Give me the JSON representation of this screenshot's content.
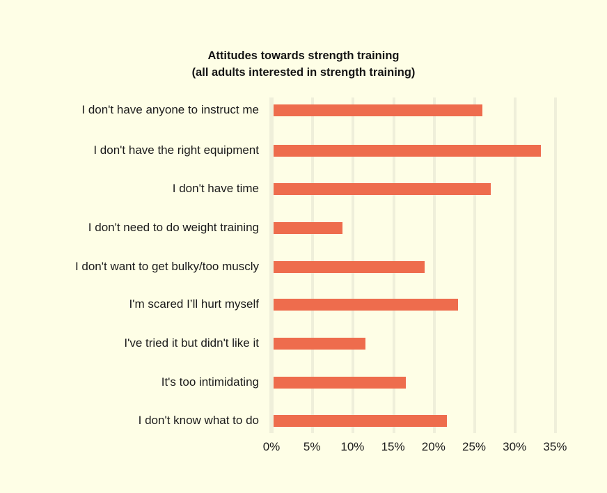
{
  "chart_data": {
    "type": "bar",
    "orientation": "horizontal",
    "title": "Attitudes towards strength training",
    "subtitle": "(all adults interested in strength training)",
    "xlabel": "",
    "ylabel": "",
    "xlim": [
      0,
      35
    ],
    "x_ticks": [
      "0%",
      "5%",
      "10%",
      "15%",
      "20%",
      "25%",
      "30%",
      "35%"
    ],
    "grid": "vertical",
    "legend": null,
    "bar_color": "#EE6C4D",
    "background": "#FEFEE6",
    "categories": [
      "I don't have anyone to instruct me",
      "I don't have the right equipment",
      "I don't have time",
      "I don't need to do weight training",
      "I don't want to get bulky/too muscly",
      "I'm scared I’ll hurt myself",
      "I've tried it but didn't like it",
      "It's too intimidating",
      "I don't know what to do"
    ],
    "values": [
      25.8,
      33.0,
      26.8,
      8.5,
      18.6,
      22.8,
      11.3,
      16.3,
      21.4
    ]
  }
}
